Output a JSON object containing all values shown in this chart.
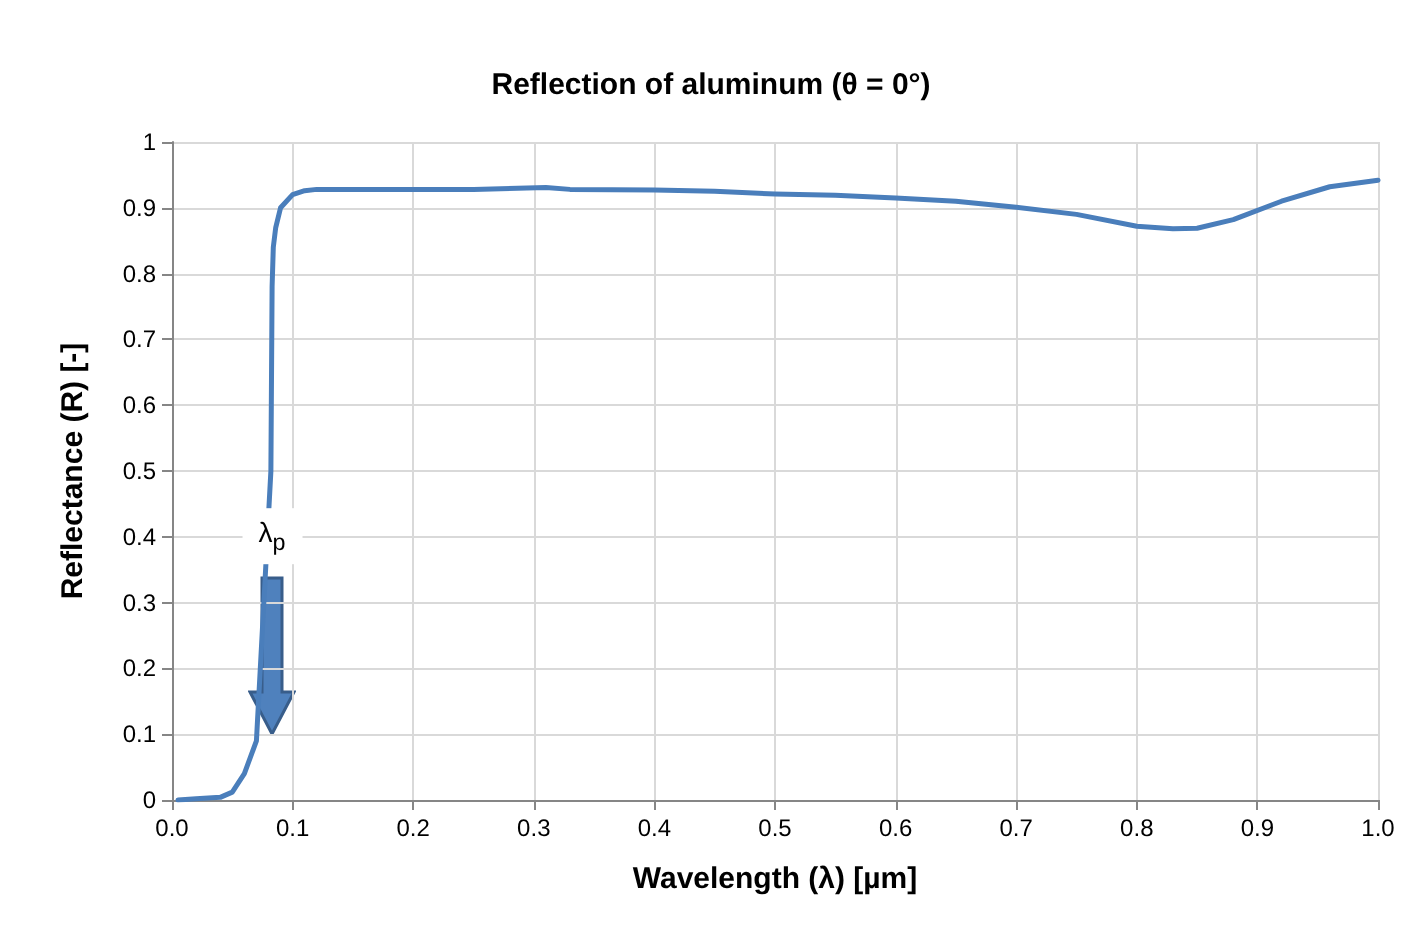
{
  "chart_data": {
    "type": "line",
    "title": "Reflection of aluminum (θ = 0°)",
    "xlabel": "Wavelength (λ) [µm]",
    "ylabel": "Reflectance (R) [-]",
    "x": [
      0.005,
      0.02,
      0.04,
      0.05,
      0.06,
      0.07,
      0.082,
      0.083,
      0.084,
      0.086,
      0.09,
      0.1,
      0.11,
      0.12,
      0.15,
      0.2,
      0.25,
      0.31,
      0.33,
      0.4,
      0.45,
      0.5,
      0.55,
      0.6,
      0.65,
      0.7,
      0.75,
      0.8,
      0.83,
      0.85,
      0.88,
      0.92,
      0.96,
      1.0
    ],
    "series": [
      {
        "color": "#4a7ebb",
        "values": [
          0,
          0.002,
          0.004,
          0.012,
          0.04,
          0.09,
          0.5,
          0.78,
          0.84,
          0.87,
          0.9,
          0.92,
          0.926,
          0.928,
          0.928,
          0.928,
          0.928,
          0.931,
          0.928,
          0.927,
          0.925,
          0.921,
          0.919,
          0.915,
          0.91,
          0.901,
          0.89,
          0.872,
          0.868,
          0.869,
          0.882,
          0.91,
          0.932,
          0.942
        ]
      }
    ],
    "annotations": [
      {
        "text": "λ$_{p}$",
        "x": 0.083,
        "y": 0.4
      }
    ],
    "xlim": [
      0,
      1
    ],
    "xticks": [
      {
        "value": 0,
        "label": "0.0"
      },
      0.1,
      0.2,
      0.3,
      0.4,
      0.5,
      0.6,
      0.7,
      0.8,
      0.9,
      {
        "value": 1,
        "label": "1.0"
      }
    ],
    "ylim": [
      0,
      1
    ],
    "yticks": [
      0,
      0.1,
      0.2,
      0.3,
      0.4,
      0.5,
      0.6,
      0.7,
      0.8,
      0.9,
      1
    ],
    "grid": true,
    "marker": "none",
    "line_style": "solid"
  }
}
